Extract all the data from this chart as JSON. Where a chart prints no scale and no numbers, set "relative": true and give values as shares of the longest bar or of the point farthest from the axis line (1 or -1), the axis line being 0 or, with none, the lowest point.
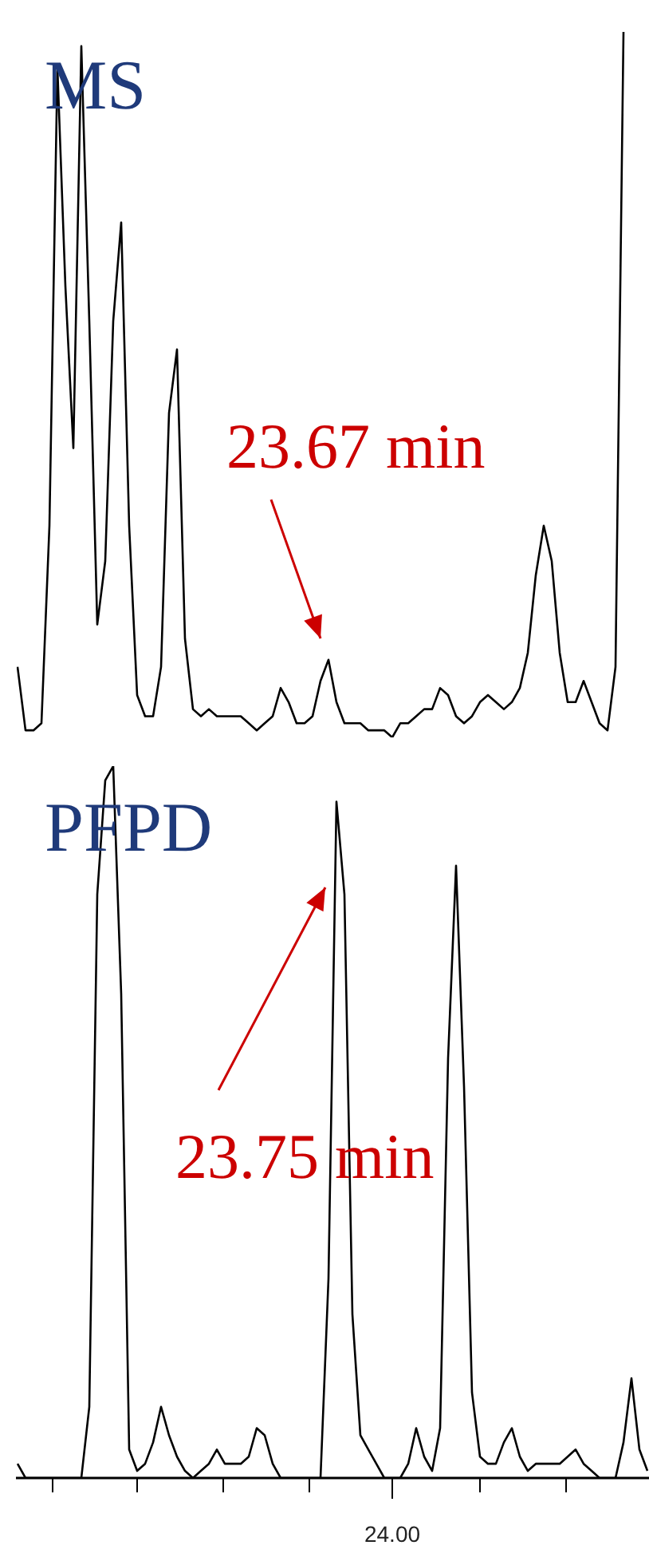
{
  "chart_data": [
    {
      "type": "line",
      "title": "MS",
      "relative": true,
      "tick_labels": false,
      "legend": false,
      "grid": false,
      "marker": "none",
      "categories": [
        null,
        null,
        null,
        null,
        null,
        null,
        null,
        null,
        null,
        null,
        null,
        null,
        null,
        null,
        null,
        null,
        null,
        null,
        null,
        null,
        null,
        null,
        null,
        null,
        null,
        null,
        null,
        null,
        null,
        null,
        null,
        null,
        null,
        null,
        null,
        null,
        null,
        null,
        null,
        null,
        null,
        null,
        null,
        null,
        null,
        null,
        null,
        null,
        null,
        null,
        null,
        null,
        null,
        null,
        null,
        null,
        null,
        null,
        null,
        null,
        null,
        null,
        null,
        null,
        null,
        null,
        null,
        null,
        null,
        null,
        null,
        null,
        null,
        null,
        null,
        null,
        null,
        null,
        null,
        null
      ],
      "series": [
        {
          "color": "#000000",
          "values": [
            0.1,
            0.01,
            0.01,
            0.02,
            0.3,
            0.95,
            0.64,
            0.41,
            0.98,
            0.59,
            0.16,
            0.25,
            0.59,
            0.73,
            0.3,
            0.06,
            0.03,
            0.03,
            0.1,
            0.46,
            0.55,
            0.14,
            0.04,
            0.03,
            0.04,
            0.03,
            0.03,
            0.03,
            0.03,
            0.02,
            0.01,
            0.02,
            0.03,
            0.07,
            0.05,
            0.02,
            0.02,
            0.03,
            0.08,
            0.11,
            0.05,
            0.02,
            0.02,
            0.02,
            0.01,
            0.01,
            0.01,
            0,
            0.02,
            0.02,
            0.03,
            0.04,
            0.04,
            0.07,
            0.06,
            0.03,
            0.02,
            0.03,
            0.05,
            0.06,
            0.05,
            0.04,
            0.05,
            0.07,
            0.12,
            0.23,
            0.3,
            0.25,
            0.12,
            0.05,
            0.05,
            0.08,
            0.05,
            0.02,
            0.01,
            0.1,
            1.0,
            null,
            null,
            null
          ]
        }
      ],
      "annotations": [
        "23.67 min"
      ]
    },
    {
      "type": "line",
      "title": "PFPD",
      "relative": true,
      "tick_labels": false,
      "legend": false,
      "grid": false,
      "marker": "none",
      "categories": [
        null,
        null,
        null,
        null,
        null,
        null,
        null,
        null,
        null,
        null,
        null,
        null,
        null,
        null,
        null,
        null,
        null,
        null,
        null,
        null,
        null,
        null,
        null,
        null,
        null,
        null,
        null,
        null,
        null,
        null,
        null,
        null,
        null,
        null,
        null,
        null,
        null,
        null,
        null,
        null,
        null,
        null,
        null,
        null,
        null,
        null,
        null,
        null,
        null,
        null,
        null,
        null,
        null,
        null,
        null,
        null,
        null,
        null,
        null,
        null,
        null,
        null,
        null,
        null,
        null,
        null,
        null,
        null,
        null,
        null,
        null,
        null,
        null,
        null,
        null,
        null,
        null,
        null,
        null,
        null
      ],
      "series": [
        {
          "color": "#000000",
          "values": [
            0.02,
            0,
            0,
            0,
            0,
            0,
            0,
            0,
            0,
            0.1,
            0.82,
            0.98,
            1.0,
            0.68,
            0.04,
            0.01,
            0.02,
            0.05,
            0.1,
            0.06,
            0.03,
            0.01,
            0,
            0.01,
            0.02,
            0.04,
            0.02,
            0.02,
            0.02,
            0.03,
            0.07,
            0.06,
            0.02,
            0,
            0,
            0,
            0,
            0,
            0,
            0.28,
            0.95,
            0.82,
            0.23,
            0.06,
            0.04,
            0.02,
            0,
            0,
            0,
            0.02,
            0.07,
            0.03,
            0.01,
            0.07,
            0.59,
            0.86,
            0.55,
            0.12,
            0.03,
            0.02,
            0.02,
            0.05,
            0.07,
            0.03,
            0.01,
            0.02,
            0.02,
            0.02,
            0.02,
            0.03,
            0.04,
            0.02,
            0.01,
            0,
            0,
            0,
            0.05,
            0.14,
            0.04,
            0.01
          ]
        }
      ],
      "annotations": [
        "23.75 min",
        "24.00"
      ]
    }
  ]
}
